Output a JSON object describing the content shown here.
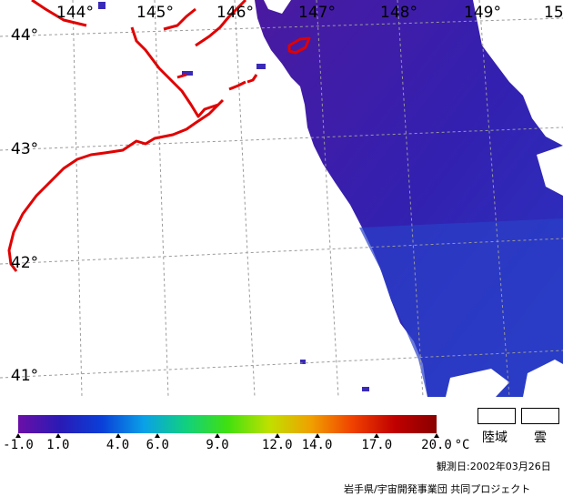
{
  "map": {
    "longitude_labels": [
      "144°",
      "145°",
      "146°",
      "147°",
      "148°",
      "149°",
      "15"
    ],
    "latitude_labels": [
      "44°",
      "43°",
      "42°",
      "41°"
    ],
    "colors": {
      "coastline": "#e00000",
      "grid": "#9a9a9a",
      "sea_dark": "#3b1aa6",
      "sea_mid": "#2a3fc8",
      "land": "#ffffff"
    }
  },
  "legend": {
    "colorbar_stops": [
      "#6a0fa8",
      "#2a1ab5",
      "#0a3fd8",
      "#0aa0e8",
      "#10d080",
      "#40e010",
      "#c0e000",
      "#f0a000",
      "#f04000",
      "#c00000",
      "#8a0000"
    ],
    "ticks": [
      "-1.0",
      "1.0",
      "4.0",
      "6.0",
      "9.0",
      "12.0",
      "14.0",
      "17.0",
      "20.0"
    ],
    "unit": "°C",
    "land_label": "陸域",
    "cloud_label": "雲"
  },
  "footer": {
    "observation_date": "観測日:2002年03月26日",
    "credit": "岩手県/宇宙開発事業団 共同プロジェクト"
  }
}
